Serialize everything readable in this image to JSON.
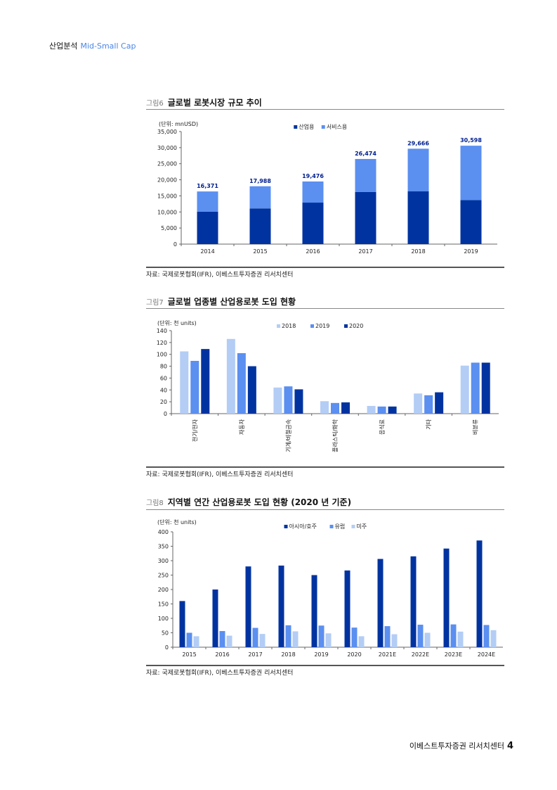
{
  "header": {
    "main": "산업분석",
    "sub": "Mid-Small Cap"
  },
  "footer": {
    "text": "이베스트투자증권 리서치센터",
    "page": "4"
  },
  "figures": [
    {
      "num": "그림6",
      "title": "글로벌 로봇시장 규모 추이",
      "source": "자료: 국제로봇협회(IFR), 이베스트투자증권 리서치센터"
    },
    {
      "num": "그림7",
      "title": "글로벌 업종별 산업용로봇 도입 현황",
      "source": "자료: 국제로봇협회(IFR), 이베스트투자증권 리서치센터"
    },
    {
      "num": "그림8",
      "title": "지역별 연간 산업용로봇 도입 현황 (2020 년 기준)",
      "source": "자료: 국제로봇협회(IFR), 이베스트투자증권 리서치센터"
    }
  ],
  "colors": {
    "dark": "#0033a0",
    "mid": "#5b8ff0",
    "light": "#b3cdf5",
    "label": "#00208f"
  },
  "chart_data": [
    {
      "type": "bar",
      "stacked": true,
      "unit_label": "(단위: mnUSD)",
      "categories": [
        "2014",
        "2015",
        "2016",
        "2017",
        "2018",
        "2019"
      ],
      "series": [
        {
          "name": "산업용",
          "values": [
            10100,
            11100,
            12900,
            16200,
            16400,
            13700
          ]
        },
        {
          "name": "서비스용",
          "values": [
            6271,
            6888,
            6576,
            10274,
            13266,
            16898
          ]
        }
      ],
      "totals": [
        16371,
        17988,
        19476,
        26474,
        29666,
        30598
      ],
      "total_labels": [
        "16,371",
        "17,988",
        "19,476",
        "26,474",
        "29,666",
        "30,598"
      ],
      "ylim": [
        0,
        35000
      ],
      "yticks": [
        "0",
        "5,000",
        "10,000",
        "15,000",
        "20,000",
        "25,000",
        "30,000",
        "35,000"
      ],
      "legend": "top-center"
    },
    {
      "type": "bar",
      "unit_label": "(단위: 천 units)",
      "categories": [
        "전기/전자",
        "자동차",
        "기계/비철금속",
        "플라스틱/화학",
        "음식료",
        "기타",
        "비분류"
      ],
      "series": [
        {
          "name": "2018",
          "values": [
            105,
            126,
            44,
            21,
            13,
            34,
            81
          ]
        },
        {
          "name": "2019",
          "values": [
            89,
            102,
            46,
            18,
            12,
            31,
            86
          ]
        },
        {
          "name": "2020",
          "values": [
            109,
            80,
            41,
            19,
            12,
            36,
            86
          ]
        }
      ],
      "ylim": [
        0,
        140
      ],
      "yticks": [
        "0",
        "20",
        "40",
        "60",
        "80",
        "100",
        "120",
        "140"
      ],
      "legend": "top-center"
    },
    {
      "type": "bar",
      "unit_label": "(단위: 천 units)",
      "categories": [
        "2015",
        "2016",
        "2017",
        "2018",
        "2019",
        "2020",
        "2021E",
        "2022E",
        "2023E",
        "2024E"
      ],
      "series": [
        {
          "name": "아시아/호주",
          "values": [
            160,
            200,
            280,
            283,
            250,
            266,
            306,
            315,
            342,
            370
          ]
        },
        {
          "name": "유럽",
          "values": [
            50,
            56,
            67,
            76,
            75,
            68,
            73,
            78,
            79,
            77
          ]
        },
        {
          "name": "미주",
          "values": [
            38,
            40,
            46,
            55,
            48,
            38,
            45,
            50,
            54,
            59
          ]
        }
      ],
      "ylim": [
        0,
        400
      ],
      "yticks": [
        "0",
        "50",
        "100",
        "150",
        "200",
        "250",
        "300",
        "350",
        "400"
      ],
      "legend": "top-center"
    }
  ]
}
